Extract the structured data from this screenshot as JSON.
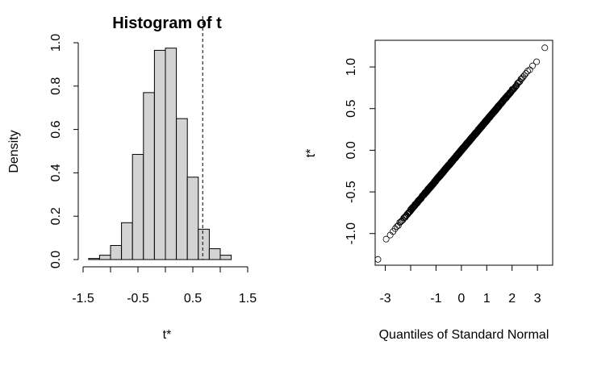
{
  "chart_data": [
    {
      "type": "bar",
      "title": "Histogram of t",
      "xlabel": "t*",
      "ylabel": "Density",
      "xlim": [
        -1.5,
        1.5
      ],
      "ylim": [
        0,
        1.0
      ],
      "x_ticks": [
        "-1.5",
        "-0.5",
        "0.5",
        "1.5"
      ],
      "y_ticks": [
        "0.0",
        "0.2",
        "0.4",
        "0.6",
        "0.8",
        "1.0"
      ],
      "bin_width": 0.2,
      "bins": [
        {
          "from": -1.4,
          "to": -1.2,
          "density": 0.005
        },
        {
          "from": -1.2,
          "to": -1.0,
          "density": 0.02
        },
        {
          "from": -1.0,
          "to": -0.8,
          "density": 0.065
        },
        {
          "from": -0.8,
          "to": -0.6,
          "density": 0.17
        },
        {
          "from": -0.6,
          "to": -0.4,
          "density": 0.485
        },
        {
          "from": -0.4,
          "to": -0.2,
          "density": 0.77
        },
        {
          "from": -0.2,
          "to": 0.0,
          "density": 0.965
        },
        {
          "from": 0.0,
          "to": 0.2,
          "density": 0.975
        },
        {
          "from": 0.2,
          "to": 0.4,
          "density": 0.65
        },
        {
          "from": 0.4,
          "to": 0.6,
          "density": 0.38
        },
        {
          "from": 0.6,
          "to": 0.8,
          "density": 0.14
        },
        {
          "from": 0.8,
          "to": 1.0,
          "density": 0.05
        },
        {
          "from": 1.0,
          "to": 1.2,
          "density": 0.02
        }
      ],
      "reference_line_x": 0.68,
      "bar_fill": "#d3d3d3",
      "bar_stroke": "#000000"
    },
    {
      "type": "scatter",
      "title": "",
      "xlabel": "Quantiles of Standard Normal",
      "ylabel": "t*",
      "xlim": [
        -3.4,
        3.6
      ],
      "ylim": [
        -1.38,
        1.32
      ],
      "x_ticks": [
        "-3",
        "-1",
        "0",
        "1",
        "2",
        "3"
      ],
      "x_tick_values": [
        -3,
        -2,
        -1,
        0,
        1,
        2,
        3
      ],
      "y_ticks": [
        "-1.0",
        "-0.5",
        "0.0",
        "0.5",
        "1.0"
      ],
      "y_tick_values": [
        -1.0,
        -0.5,
        0.0,
        0.5,
        1.0
      ],
      "n_points": 999,
      "slope": 0.36,
      "intercept": 0.0,
      "extremes": {
        "min": -1.31,
        "max": 1.23
      },
      "marker": "open-circle"
    }
  ]
}
